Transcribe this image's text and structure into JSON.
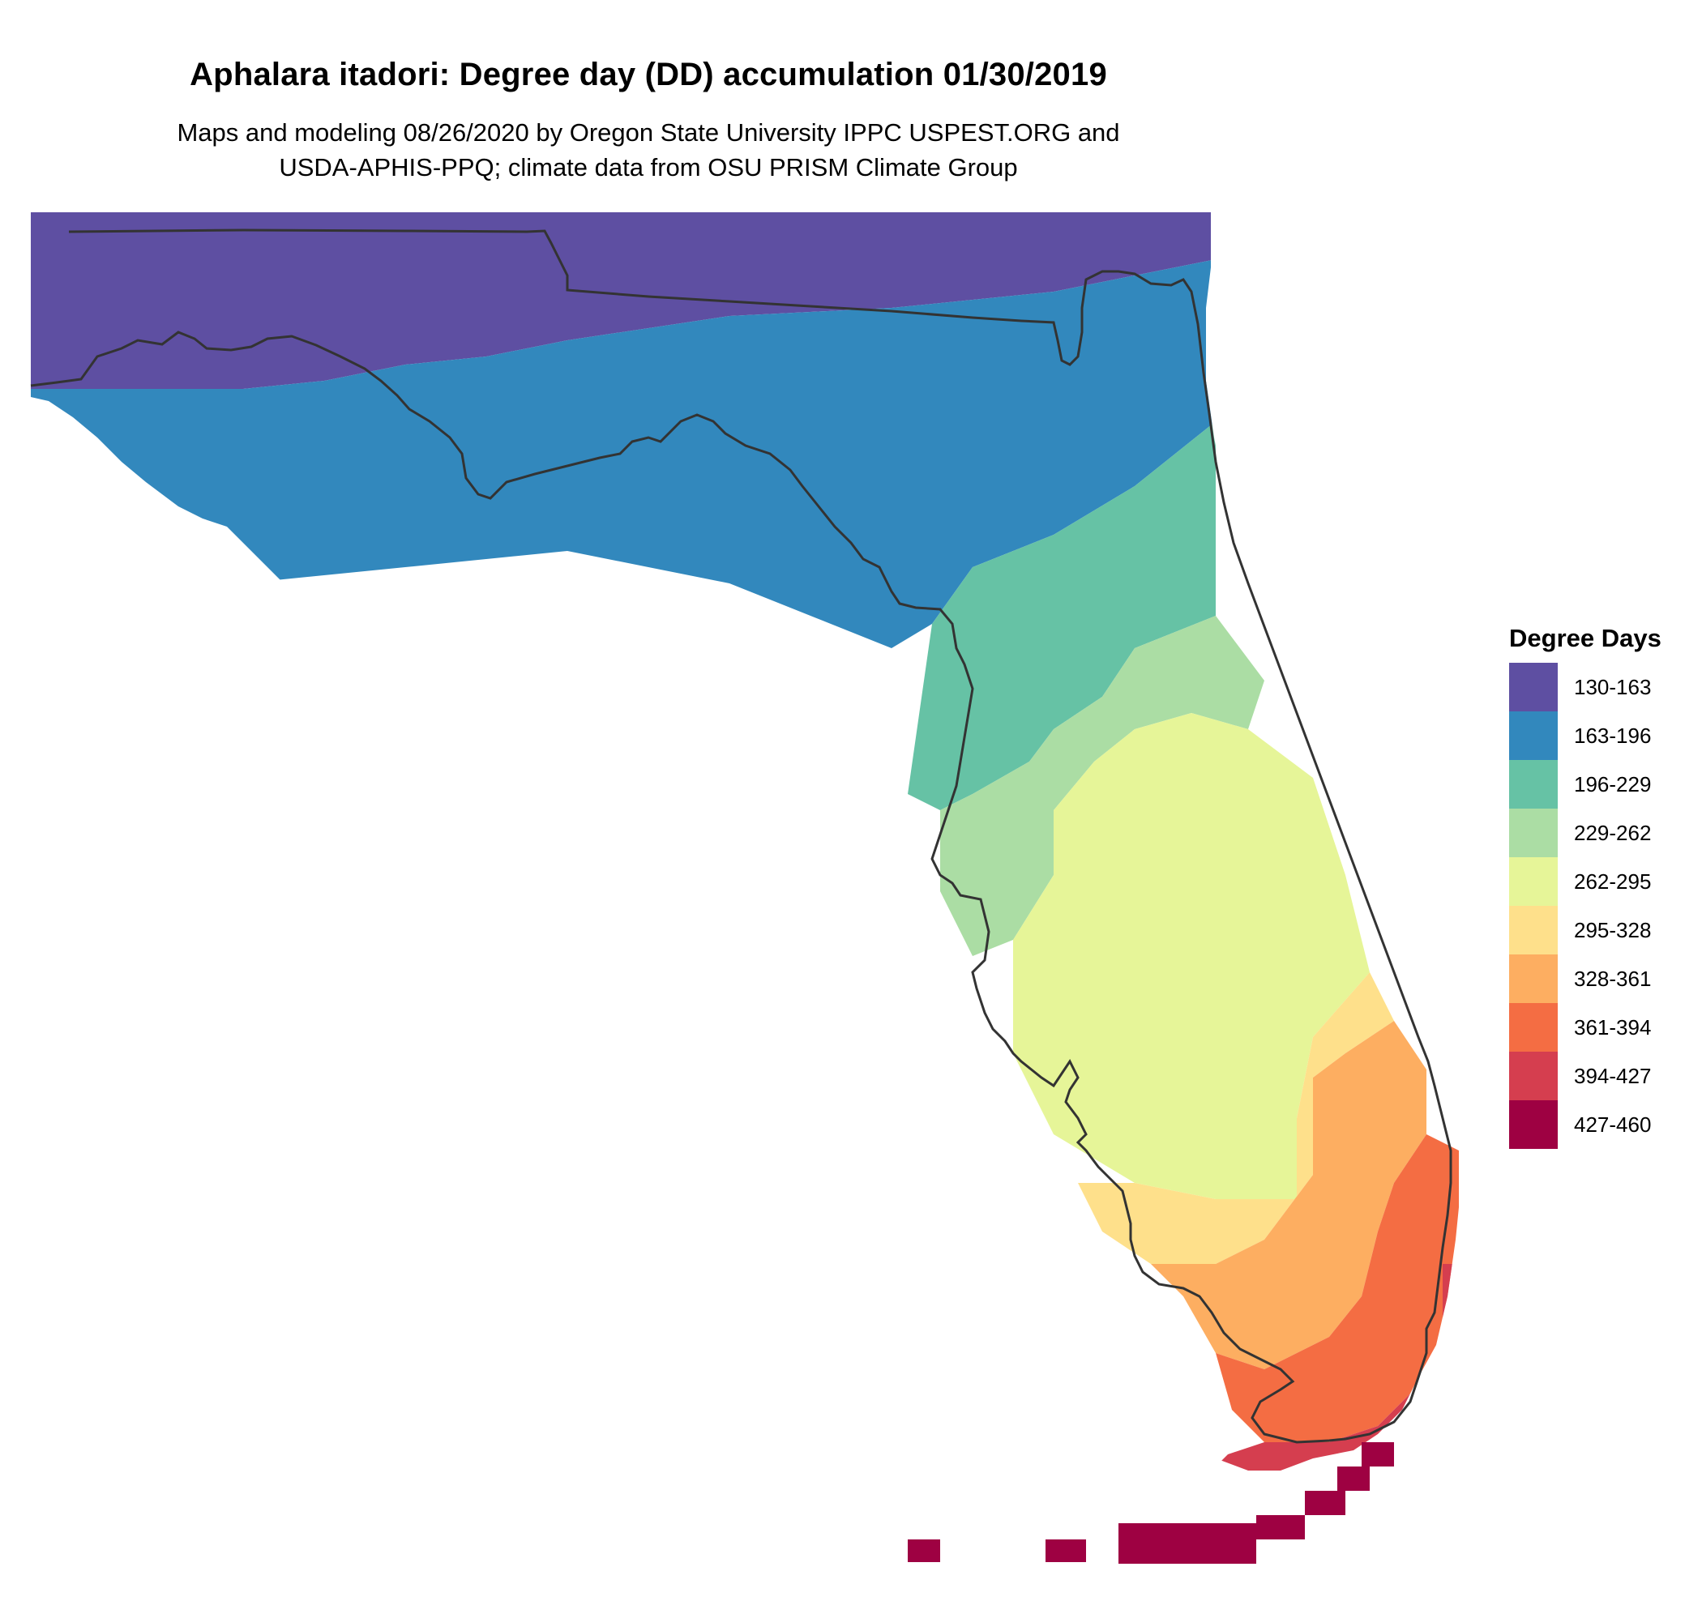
{
  "map": {
    "title": "Aphalara itadori: Degree day (DD) accumulation 01/30/2019",
    "subtitle_line1": "Maps and modeling 08/26/2020 by Oregon State University IPPC USPEST.ORG and",
    "subtitle_line2": "USDA-APHIS-PPQ; climate data from OSU PRISM Climate Group",
    "region": "Florida",
    "legend": {
      "title": "Degree Days",
      "classes": [
        {
          "label": "130-163",
          "color": "#5E4FA2"
        },
        {
          "label": "163-196",
          "color": "#3288BD"
        },
        {
          "label": "196-229",
          "color": "#66C2A5"
        },
        {
          "label": "229-262",
          "color": "#ABDDA4"
        },
        {
          "label": "262-295",
          "color": "#E6F598"
        },
        {
          "label": "295-328",
          "color": "#FEE08B"
        },
        {
          "label": "328-361",
          "color": "#FDAE61"
        },
        {
          "label": "361-394",
          "color": "#F46D43"
        },
        {
          "label": "394-427",
          "color": "#D53E4F"
        },
        {
          "label": "427-460",
          "color": "#9E0142"
        }
      ]
    }
  }
}
